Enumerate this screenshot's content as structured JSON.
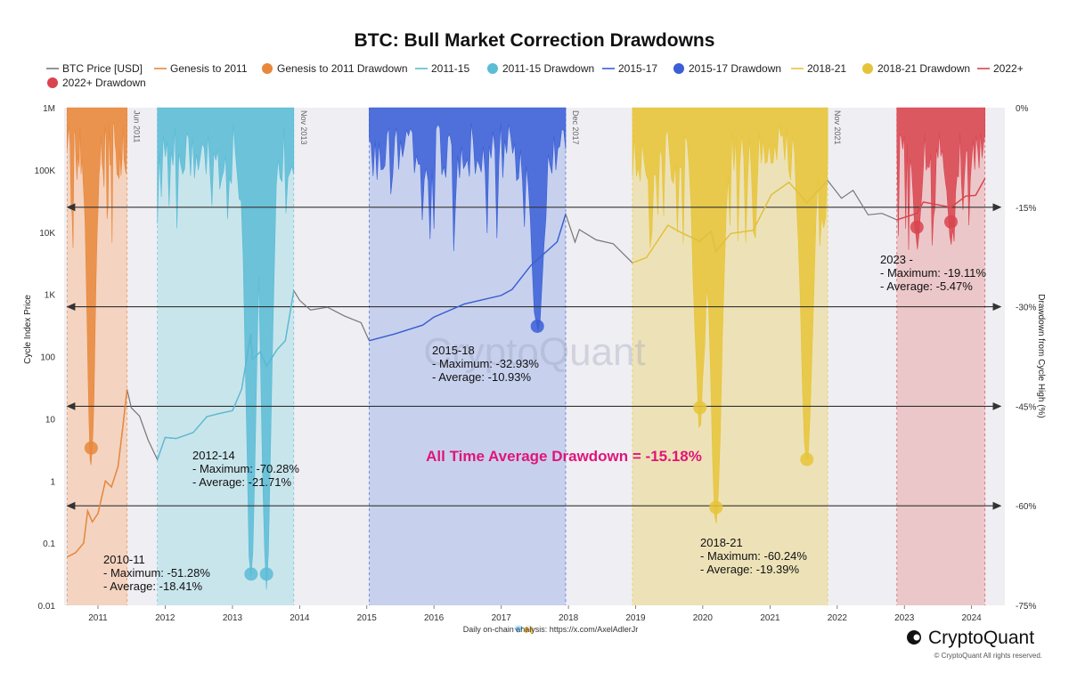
{
  "chart_data": {
    "type": "line",
    "title": "BTC: Bull Market Correction Drawdowns",
    "ylabel_left": "Cycle Index Price",
    "ylabel_right": "Drawdown from Cycle High (%)",
    "y_left_scale": "log",
    "y_left_range": [
      0.01,
      1000000
    ],
    "y_left_ticks": [
      {
        "value": 1000000,
        "label": "1M"
      },
      {
        "value": 100000,
        "label": "100K"
      },
      {
        "value": 10000,
        "label": "10K"
      },
      {
        "value": 1000,
        "label": "1K"
      },
      {
        "value": 100,
        "label": "100"
      },
      {
        "value": 10,
        "label": "10"
      },
      {
        "value": 1,
        "label": "1"
      },
      {
        "value": 0.1,
        "label": "0.1"
      },
      {
        "value": 0.01,
        "label": "0.01"
      }
    ],
    "y_right_range": [
      -75,
      0
    ],
    "y_right_ticks": [
      {
        "value": 0,
        "label": "0%"
      },
      {
        "value": -15,
        "label": "-15%"
      },
      {
        "value": -30,
        "label": "-30%"
      },
      {
        "value": -45,
        "label": "-45%"
      },
      {
        "value": -60,
        "label": "-60%"
      },
      {
        "value": -75,
        "label": "-75%"
      }
    ],
    "x_range": [
      "2010-07-01",
      "2024-06-30"
    ],
    "x_ticks": [
      "2011",
      "2012",
      "2013",
      "2014",
      "2015",
      "2016",
      "2017",
      "2018",
      "2019",
      "2020",
      "2021",
      "2022",
      "2023",
      "2024"
    ],
    "legend": [
      {
        "name": "BTC Price [USD]",
        "kind": "line",
        "color": "#7a7a7a"
      },
      {
        "name": "Genesis to 2011",
        "kind": "line",
        "color": "#e8873a"
      },
      {
        "name": "Genesis to 2011 Drawdown",
        "kind": "dot",
        "color": "#e8873a"
      },
      {
        "name": "2011-15",
        "kind": "line",
        "color": "#5bbcd6"
      },
      {
        "name": "2011-15 Drawdown",
        "kind": "dot",
        "color": "#5bbcd6"
      },
      {
        "name": "2015-17",
        "kind": "line",
        "color": "#3a5fd6"
      },
      {
        "name": "2015-17 Drawdown",
        "kind": "dot",
        "color": "#3a5fd6"
      },
      {
        "name": "2018-21",
        "kind": "line",
        "color": "#e6c43a"
      },
      {
        "name": "2018-21 Drawdown",
        "kind": "dot",
        "color": "#e6c43a"
      },
      {
        "name": "2022+",
        "kind": "line",
        "color": "#d9444f"
      },
      {
        "name": "2022+ Drawdown",
        "kind": "dot",
        "color": "#d9444f"
      }
    ],
    "regions": [
      {
        "name": "Genesis to 2011",
        "start": "2010-07-17",
        "end": "2011-06-08",
        "fill": "#f4d3c0",
        "color": "#e8873a"
      },
      {
        "name": "2011-15",
        "start": "2011-11-20",
        "end": "2013-11-30",
        "fill": "#c9e5ec",
        "color": "#5bbcd6"
      },
      {
        "name": "2015-17",
        "start": "2015-01-14",
        "end": "2017-12-17",
        "fill": "#c7d1ee",
        "color": "#3a5fd6"
      },
      {
        "name": "2018-21",
        "start": "2018-12-15",
        "end": "2021-11-10",
        "fill": "#ede2b7",
        "color": "#e6c43a"
      },
      {
        "name": "2022+",
        "start": "2022-11-21",
        "end": "2024-03-14",
        "fill": "#ecc7c9",
        "color": "#d9444f"
      }
    ],
    "cycle_top_markers": [
      {
        "date": "2011-06-08",
        "label": "Jun 2011"
      },
      {
        "date": "2013-11-30",
        "label": "Nov 2013"
      },
      {
        "date": "2017-12-17",
        "label": "Dec 2017"
      },
      {
        "date": "2021-11-10",
        "label": "Nov 2021"
      }
    ],
    "reference_lines_pct": [
      -15,
      -30,
      -45,
      -60
    ],
    "price_series": [
      {
        "date": "2010-07-18",
        "value": 0.06
      },
      {
        "date": "2010-09-01",
        "value": 0.07
      },
      {
        "date": "2010-10-15",
        "value": 0.1
      },
      {
        "date": "2010-11-06",
        "value": 0.33
      },
      {
        "date": "2010-12-01",
        "value": 0.22
      },
      {
        "date": "2011-01-01",
        "value": 0.3
      },
      {
        "date": "2011-02-10",
        "value": 1.0
      },
      {
        "date": "2011-03-15",
        "value": 0.8
      },
      {
        "date": "2011-04-20",
        "value": 1.7
      },
      {
        "date": "2011-05-15",
        "value": 7.0
      },
      {
        "date": "2011-06-08",
        "value": 29.6
      },
      {
        "date": "2011-07-01",
        "value": 15
      },
      {
        "date": "2011-08-15",
        "value": 11
      },
      {
        "date": "2011-10-01",
        "value": 4.5
      },
      {
        "date": "2011-11-20",
        "value": 2.2
      },
      {
        "date": "2012-01-01",
        "value": 5.0
      },
      {
        "date": "2012-03-01",
        "value": 4.8
      },
      {
        "date": "2012-06-01",
        "value": 6.0
      },
      {
        "date": "2012-08-15",
        "value": 10.8
      },
      {
        "date": "2012-10-15",
        "value": 12
      },
      {
        "date": "2013-01-01",
        "value": 13.5
      },
      {
        "date": "2013-02-20",
        "value": 30
      },
      {
        "date": "2013-04-10",
        "value": 230
      },
      {
        "date": "2013-04-20",
        "value": 90
      },
      {
        "date": "2013-06-01",
        "value": 120
      },
      {
        "date": "2013-07-05",
        "value": 70
      },
      {
        "date": "2013-09-01",
        "value": 130
      },
      {
        "date": "2013-10-15",
        "value": 180
      },
      {
        "date": "2013-11-30",
        "value": 1150
      },
      {
        "date": "2014-01-01",
        "value": 800
      },
      {
        "date": "2014-03-01",
        "value": 560
      },
      {
        "date": "2014-06-01",
        "value": 620
      },
      {
        "date": "2014-09-01",
        "value": 450
      },
      {
        "date": "2014-12-01",
        "value": 350
      },
      {
        "date": "2015-01-14",
        "value": 180
      },
      {
        "date": "2015-06-01",
        "value": 230
      },
      {
        "date": "2015-11-01",
        "value": 320
      },
      {
        "date": "2016-01-01",
        "value": 430
      },
      {
        "date": "2016-06-15",
        "value": 700
      },
      {
        "date": "2016-12-31",
        "value": 960
      },
      {
        "date": "2017-03-01",
        "value": 1200
      },
      {
        "date": "2017-06-10",
        "value": 2900
      },
      {
        "date": "2017-09-01",
        "value": 4800
      },
      {
        "date": "2017-11-01",
        "value": 7000
      },
      {
        "date": "2017-12-17",
        "value": 19500
      },
      {
        "date": "2018-02-06",
        "value": 6900
      },
      {
        "date": "2018-03-01",
        "value": 11000
      },
      {
        "date": "2018-06-01",
        "value": 7500
      },
      {
        "date": "2018-09-01",
        "value": 6500
      },
      {
        "date": "2018-12-15",
        "value": 3200
      },
      {
        "date": "2019-03-01",
        "value": 3900
      },
      {
        "date": "2019-06-26",
        "value": 12900
      },
      {
        "date": "2019-09-01",
        "value": 10000
      },
      {
        "date": "2019-12-15",
        "value": 7100
      },
      {
        "date": "2020-02-15",
        "value": 10300
      },
      {
        "date": "2020-03-13",
        "value": 4900
      },
      {
        "date": "2020-06-01",
        "value": 9500
      },
      {
        "date": "2020-10-01",
        "value": 10700
      },
      {
        "date": "2021-01-08",
        "value": 40000
      },
      {
        "date": "2021-04-14",
        "value": 63500
      },
      {
        "date": "2021-07-20",
        "value": 29800
      },
      {
        "date": "2021-11-10",
        "value": 67500
      },
      {
        "date": "2022-01-24",
        "value": 35000
      },
      {
        "date": "2022-03-28",
        "value": 47000
      },
      {
        "date": "2022-06-18",
        "value": 19000
      },
      {
        "date": "2022-09-01",
        "value": 20000
      },
      {
        "date": "2022-11-21",
        "value": 15800
      },
      {
        "date": "2023-03-10",
        "value": 20000
      },
      {
        "date": "2023-04-14",
        "value": 30500
      },
      {
        "date": "2023-09-11",
        "value": 25000
      },
      {
        "date": "2023-12-01",
        "value": 38000
      },
      {
        "date": "2024-01-23",
        "value": 39000
      },
      {
        "date": "2024-03-14",
        "value": 73000
      }
    ],
    "max_drawdown_points": [
      {
        "date": "2010-11-25",
        "drawdown": -51.28,
        "color": "#e8873a"
      },
      {
        "date": "2013-04-12",
        "drawdown": -70.28,
        "color": "#5bbcd6"
      },
      {
        "date": "2013-07-05",
        "drawdown": -70.28,
        "color": "#5bbcd6"
      },
      {
        "date": "2017-07-16",
        "drawdown": -32.93,
        "color": "#3a5fd6"
      },
      {
        "date": "2019-12-17",
        "drawdown": -45.2,
        "color": "#e6c43a"
      },
      {
        "date": "2020-03-13",
        "drawdown": -60.24,
        "color": "#e6c43a"
      },
      {
        "date": "2021-07-20",
        "drawdown": -53.0,
        "color": "#e6c43a"
      },
      {
        "date": "2023-03-10",
        "drawdown": -18.0,
        "color": "#d9444f"
      },
      {
        "date": "2023-09-11",
        "drawdown": -17.2,
        "color": "#d9444f"
      }
    ],
    "annotations": [
      {
        "id": "c1",
        "lines": [
          "2010-11",
          "- Maximum: -51.28%",
          "- Average: -18.41%"
        ]
      },
      {
        "id": "c2",
        "lines": [
          "2012-14",
          "- Maximum: -70.28%",
          "- Average: -21.71%"
        ]
      },
      {
        "id": "c3",
        "lines": [
          "2015-18",
          "- Maximum: -32.93%",
          "- Average: -10.93%"
        ]
      },
      {
        "id": "c4",
        "lines": [
          "2018-21",
          "- Maximum: -60.24%",
          "- Average: -19.39%"
        ]
      },
      {
        "id": "c5",
        "lines": [
          "2023 -",
          "- Maximum: -19.11%",
          "- Average: -5.47%"
        ]
      }
    ],
    "highlight": "All Time Average Drawdown = -15.18%"
  },
  "watermark": "CryptoQuant",
  "footer_text": "Daily on-chain analysis: https://x.com/AxelAdlerJr",
  "footer_emoji": "💎🙌",
  "brand": "CryptoQuant",
  "copyright": "© CryptoQuant All rights reserved."
}
